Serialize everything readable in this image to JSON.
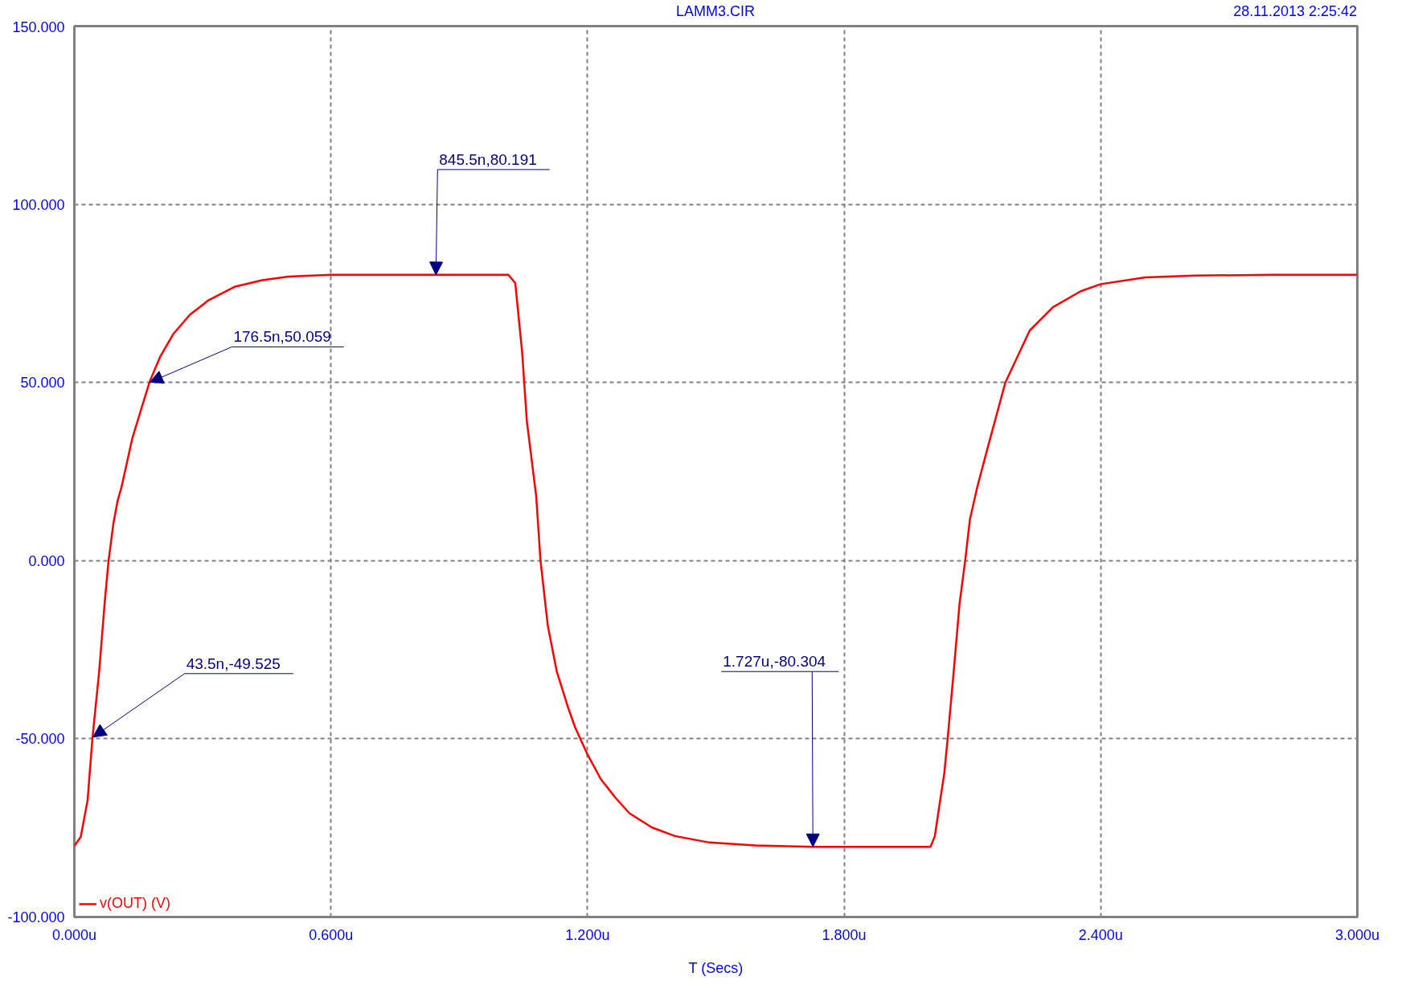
{
  "chart_data": {
    "type": "line",
    "title": "LAMM3.CIR",
    "xlabel": "T (Secs)",
    "x": [
      0,
      0.015,
      0.031,
      0.042,
      0.058,
      0.071,
      0.08,
      0.091,
      0.101,
      0.11,
      0.135,
      0.154,
      0.176,
      0.201,
      0.232,
      0.27,
      0.314,
      0.376,
      0.439,
      0.501,
      0.6,
      1.015,
      1.031,
      1.047,
      1.058,
      1.08,
      1.09,
      1.107,
      1.128,
      1.155,
      1.171,
      1.2,
      1.231,
      1.265,
      1.298,
      1.351,
      1.405,
      1.485,
      1.592,
      1.727,
      2.002,
      2.012,
      2.025,
      2.034,
      2.042,
      2.056,
      2.07,
      2.083,
      2.094,
      2.111,
      2.137,
      2.177,
      2.234,
      2.288,
      2.353,
      2.4,
      2.504,
      2.62,
      2.8,
      3.0
    ],
    "series": [
      {
        "name": "v(OUT) (V)",
        "color": "#ff0000",
        "values": [
          -80.1,
          -77.5,
          -67.2,
          -50.2,
          -31.1,
          -11.7,
          0,
          10.2,
          16.7,
          20.5,
          34.1,
          41.6,
          50.2,
          57.3,
          63.7,
          69.0,
          73.1,
          76.9,
          78.7,
          79.7,
          80.2,
          80.2,
          77.9,
          58.6,
          39.2,
          18.0,
          0,
          -18.2,
          -31.1,
          -41.4,
          -46.8,
          -54.4,
          -61.3,
          -66.5,
          -70.9,
          -74.9,
          -77.3,
          -79.1,
          -79.9,
          -80.3,
          -80.3,
          -77.3,
          -66.9,
          -59.8,
          -50.0,
          -31.3,
          -11.9,
          0,
          11.5,
          20.5,
          32.3,
          50.0,
          64.6,
          71.1,
          75.6,
          77.6,
          79.5,
          80.0,
          80.2,
          80.2
        ]
      }
    ],
    "xlim": [
      0,
      3
    ],
    "ylim": [
      -100,
      150
    ],
    "xticks": [
      {
        "value": 0,
        "label": "0.000u"
      },
      {
        "value": 0.6,
        "label": "0.600u"
      },
      {
        "value": 1.2,
        "label": "1.200u"
      },
      {
        "value": 1.8,
        "label": "1.800u"
      },
      {
        "value": 2.4,
        "label": "2.400u"
      },
      {
        "value": 3,
        "label": "3.000u"
      }
    ],
    "yticks": [
      {
        "value": -100,
        "label": "-100.000"
      },
      {
        "value": -50,
        "label": "-50.000"
      },
      {
        "value": 0,
        "label": "0.000"
      },
      {
        "value": 50,
        "label": "50.000"
      },
      {
        "value": 100,
        "label": "100.000"
      },
      {
        "value": 150,
        "label": "150.000"
      }
    ],
    "grid": true,
    "legend": "bottom left",
    "line_style": "solid",
    "annotations": [
      "28.11.2013 2:25:42",
      {
        "text": "845.5n,80.191",
        "x": 0.8455,
        "y": 80.191
      },
      {
        "text": "176.5n,50.059",
        "x": 0.1765,
        "y": 50.059
      },
      {
        "text": "43.5n,-49.525",
        "x": 0.0435,
        "y": -49.525
      },
      {
        "text": "1.727u,-80.304",
        "x": 1.727,
        "y": -80.304
      }
    ]
  }
}
